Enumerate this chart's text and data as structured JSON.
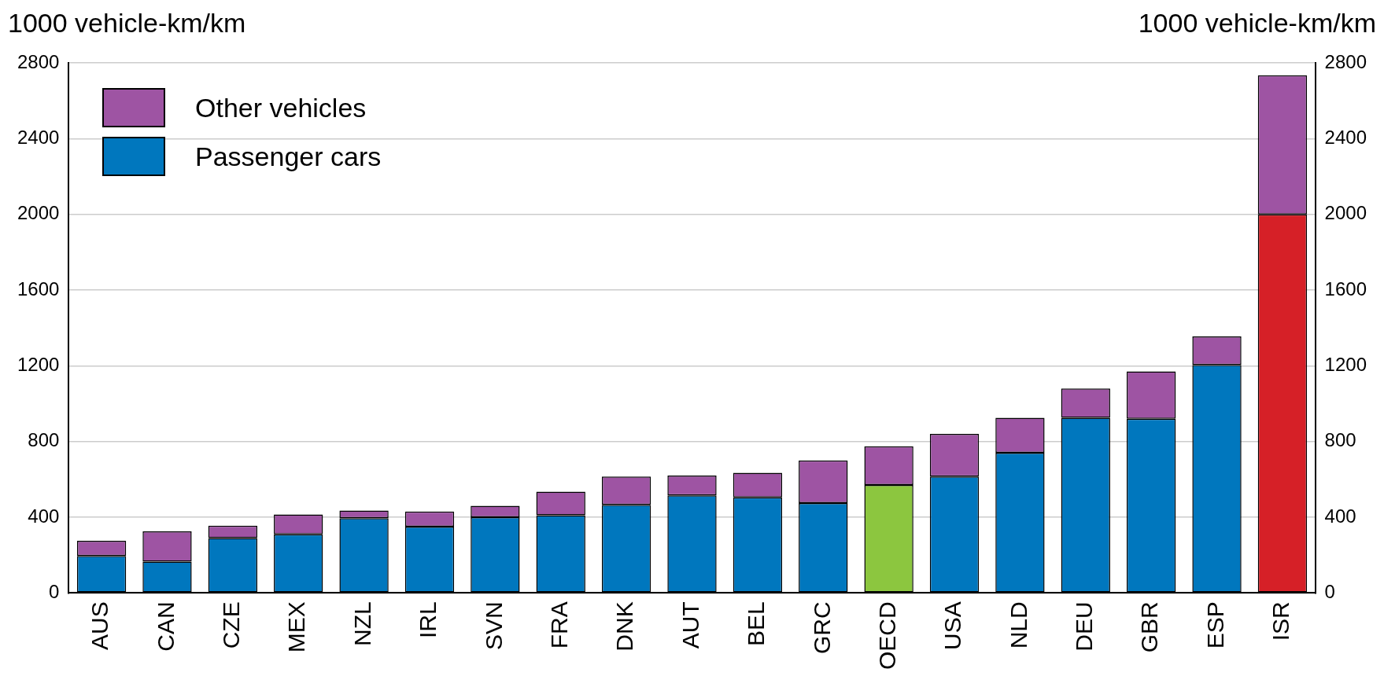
{
  "chart_data": {
    "type": "bar",
    "stacked": true,
    "ylabel": "1000 vehicle-km/km",
    "y2label": "1000 vehicle-km/km",
    "categories": [
      "AUS",
      "CAN",
      "CZE",
      "MEX",
      "NZL",
      "IRL",
      "SVN",
      "FRA",
      "DNK",
      "AUT",
      "BEL",
      "GRC",
      "OECD",
      "USA",
      "NLD",
      "DEU",
      "GBR",
      "ESP",
      "ISR"
    ],
    "series": [
      {
        "name": "Passenger cars",
        "color": "#0077be",
        "colors": [
          "#0077be",
          "#0077be",
          "#0077be",
          "#0077be",
          "#0077be",
          "#0077be",
          "#0077be",
          "#0077be",
          "#0077be",
          "#0077be",
          "#0077be",
          "#0077be",
          "#8cc63f",
          "#0077be",
          "#0077be",
          "#0077be",
          "#0077be",
          "#0077be",
          "#d62027"
        ],
        "values": [
          195,
          165,
          290,
          310,
          395,
          350,
          400,
          410,
          465,
          515,
          505,
          475,
          570,
          615,
          740,
          925,
          920,
          1205,
          2000
        ]
      },
      {
        "name": "Other vehicles",
        "color": "#9e54a3",
        "values": [
          80,
          160,
          65,
          105,
          40,
          80,
          60,
          125,
          150,
          105,
          130,
          225,
          205,
          225,
          185,
          155,
          250,
          150,
          735
        ]
      }
    ],
    "ylim": [
      0,
      2800
    ],
    "yticks": [
      0,
      400,
      800,
      1200,
      1600,
      2000,
      2400,
      2800
    ],
    "y2lim": [
      0,
      2800
    ],
    "y2ticks": [
      0,
      400,
      800,
      1200,
      1600,
      2000,
      2400,
      2800
    ],
    "grid": "y",
    "legend": "top left"
  }
}
